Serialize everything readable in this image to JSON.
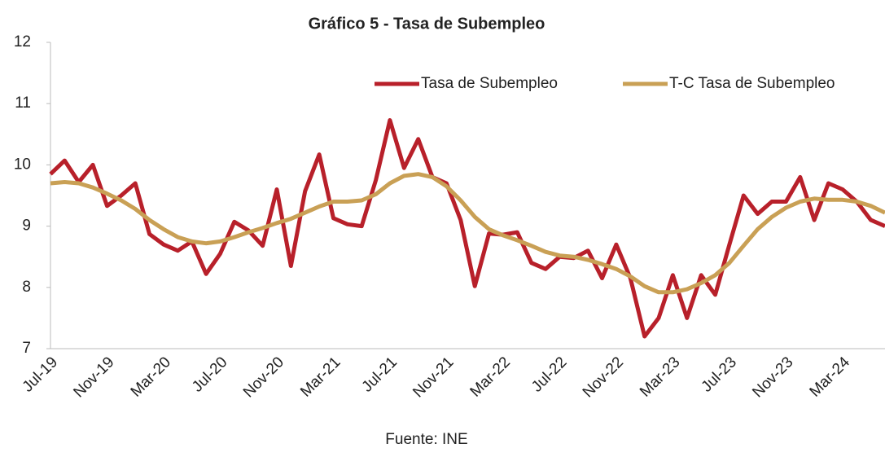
{
  "chart_data": {
    "type": "line",
    "title": "Gráfico 5 - Tasa de Subempleo",
    "source": "Fuente: INE",
    "categories": [
      "Jul-19",
      null,
      null,
      null,
      "Nov-19",
      null,
      null,
      null,
      "Mar-20",
      null,
      null,
      null,
      "Jul-20",
      null,
      null,
      null,
      "Nov-20",
      null,
      null,
      null,
      "Mar-21",
      null,
      null,
      null,
      "Jul-21",
      null,
      null,
      null,
      "Nov-21",
      null,
      null,
      null,
      "Mar-22",
      null,
      null,
      null,
      "Jul-22",
      null,
      null,
      null,
      "Nov-22",
      null,
      null,
      null,
      "Mar-23",
      null,
      null,
      null,
      "Jul-23",
      null,
      null,
      null,
      "Nov-23",
      null,
      null,
      null,
      "Mar-24",
      null,
      null,
      null
    ],
    "series": [
      {
        "name": "Tasa de Subempleo",
        "color": "#b8202a",
        "values": [
          9.85,
          10.07,
          9.72,
          10.0,
          9.33,
          9.5,
          9.7,
          8.87,
          8.7,
          8.6,
          8.75,
          8.22,
          8.55,
          9.07,
          8.93,
          8.68,
          9.6,
          8.35,
          9.57,
          10.17,
          9.13,
          9.03,
          9.0,
          9.75,
          10.73,
          9.95,
          10.42,
          9.8,
          9.7,
          9.1,
          8.02,
          8.88,
          8.86,
          8.9,
          8.4,
          8.3,
          8.5,
          8.48,
          8.6,
          8.15,
          8.7,
          8.15,
          7.2,
          7.5,
          8.2,
          7.5,
          8.2,
          7.88,
          8.7,
          9.5,
          9.2,
          9.4,
          9.4,
          9.8,
          9.1,
          9.7,
          9.6,
          9.4,
          9.1,
          9.0
        ]
      },
      {
        "name": "T-C Tasa de Subempleo",
        "color": "#c9a055",
        "values": [
          9.7,
          9.72,
          9.7,
          9.63,
          9.53,
          9.42,
          9.28,
          9.1,
          8.95,
          8.82,
          8.75,
          8.72,
          8.75,
          8.82,
          8.9,
          8.97,
          9.05,
          9.12,
          9.22,
          9.32,
          9.4,
          9.4,
          9.42,
          9.52,
          9.7,
          9.82,
          9.85,
          9.8,
          9.65,
          9.42,
          9.15,
          8.95,
          8.85,
          8.77,
          8.68,
          8.58,
          8.52,
          8.5,
          8.45,
          8.38,
          8.3,
          8.18,
          8.02,
          7.92,
          7.92,
          7.97,
          8.07,
          8.2,
          8.4,
          8.68,
          8.95,
          9.15,
          9.3,
          9.4,
          9.45,
          9.43,
          9.43,
          9.4,
          9.33,
          9.22
        ]
      }
    ],
    "ylim": [
      7,
      12
    ],
    "yticks": [
      7,
      8,
      9,
      10,
      11,
      12
    ],
    "grid": false,
    "legend": "top-right"
  }
}
